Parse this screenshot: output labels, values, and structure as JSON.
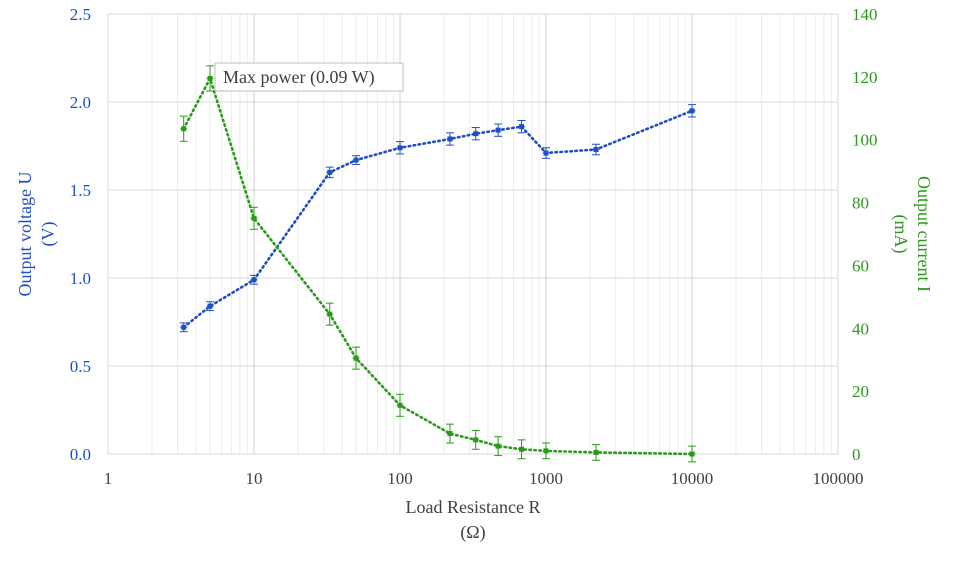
{
  "chart_data": {
    "type": "scatter",
    "xlabel_line1": "Load Resistance R",
    "xlabel_line2": "(Ω)",
    "ylabel_left_line1": "Output voltage U",
    "ylabel_left_line2": "(V)",
    "ylabel_right_line1": "Output current I",
    "ylabel_right_line2": "(mA)",
    "x_scale": "log",
    "xlim": [
      1,
      100000
    ],
    "x_ticks": [
      "1",
      "10",
      "100",
      "1000",
      "10000",
      "100000"
    ],
    "ylim_left": [
      0,
      2.5
    ],
    "y_left_ticks": [
      "0.0",
      "0.5",
      "1.0",
      "1.5",
      "2.0",
      "2.5"
    ],
    "ylim_right": [
      0,
      140
    ],
    "y_right_ticks": [
      "0",
      "20",
      "40",
      "60",
      "80",
      "100",
      "120",
      "140"
    ],
    "grid": true,
    "annotation": "Max power (0.09 W)",
    "colors": {
      "voltage": "#1f4fc4",
      "current": "#2a9a1a",
      "left_axis": "#1f4fc4",
      "right_axis": "#2a9a1a",
      "grid": "#d9d9d9",
      "tick_text": "#404040"
    },
    "series": [
      {
        "axis": "left",
        "x": [
          3.3,
          5,
          10,
          33,
          50,
          100,
          220,
          330,
          470,
          680,
          1000,
          2200,
          10000
        ],
        "y": [
          0.72,
          0.84,
          0.99,
          1.6,
          1.67,
          1.74,
          1.79,
          1.82,
          1.84,
          1.86,
          1.71,
          1.73,
          1.95
        ],
        "error": [
          0.025,
          0.025,
          0.025,
          0.03,
          0.025,
          0.035,
          0.035,
          0.035,
          0.035,
          0.035,
          0.03,
          0.03,
          0.035
        ],
        "color": "#1f4fc4"
      },
      {
        "axis": "right",
        "x": [
          3.3,
          5,
          10,
          33,
          50,
          100,
          220,
          330,
          470,
          680,
          1000,
          2200,
          10000
        ],
        "y": [
          103.5,
          119.5,
          75,
          44.5,
          30.5,
          15.5,
          6.5,
          4.5,
          2.5,
          1.5,
          1.0,
          0.5,
          0
        ],
        "error": [
          4,
          4,
          3.5,
          3.5,
          3.5,
          3.5,
          3,
          3,
          3,
          3,
          2.5,
          2.5,
          2.5
        ],
        "color": "#2a9a1a"
      }
    ]
  }
}
